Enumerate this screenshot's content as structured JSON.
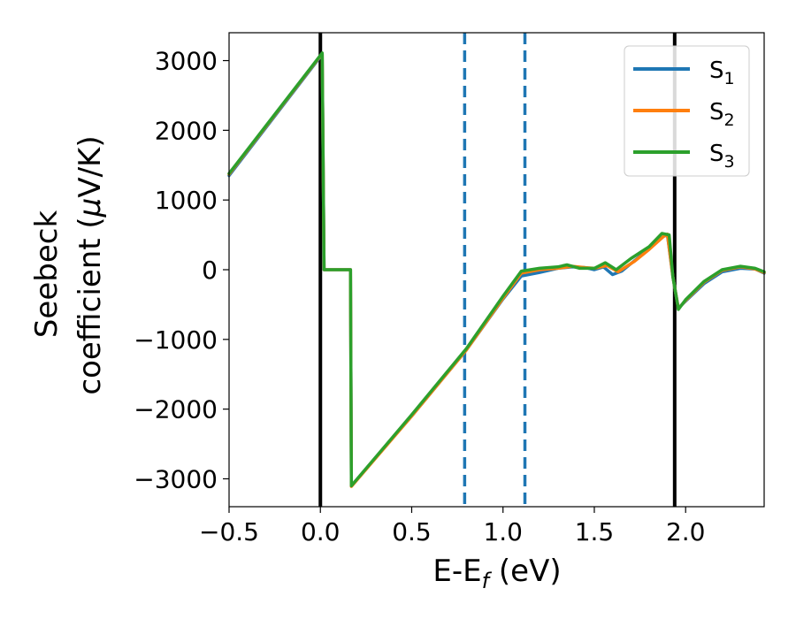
{
  "chart_data": {
    "type": "line",
    "xlabel": {
      "main": "E-E",
      "sub": "f",
      "unit": " (eV)"
    },
    "ylabel": {
      "line1": "Seebeck",
      "line2": "coefficient  (",
      "mu": "μ",
      "unit": "V/K)"
    },
    "xlim": [
      -0.5,
      2.43
    ],
    "ylim": [
      -3400,
      3400
    ],
    "xticks": [
      -0.5,
      0.0,
      0.5,
      1.0,
      1.5,
      2.0
    ],
    "xtick_labels": [
      "−0.5",
      "0.0",
      "0.5",
      "1.0",
      "1.5",
      "2.0"
    ],
    "yticks": [
      3000,
      2000,
      1000,
      0,
      -1000,
      -2000,
      -3000
    ],
    "ytick_labels": [
      "3000",
      "2000",
      "1000",
      "0",
      "−1000",
      "−2000",
      "−3000"
    ],
    "legend_position": "top-right",
    "vertical_lines": [
      {
        "x": 0.0,
        "style": "solid",
        "color": "#000000"
      },
      {
        "x": 1.94,
        "style": "solid",
        "color": "#000000"
      },
      {
        "x": 0.79,
        "style": "dashed",
        "color": "#1f77b4"
      },
      {
        "x": 1.12,
        "style": "dashed",
        "color": "#1f77b4"
      }
    ],
    "series": [
      {
        "name": "S",
        "sub": "1",
        "color": "#1f77b4",
        "points": [
          [
            -0.5,
            1350
          ],
          [
            0.01,
            3090
          ],
          [
            0.02,
            0
          ],
          [
            0.165,
            0
          ],
          [
            0.17,
            -3100
          ],
          [
            0.5,
            -2100
          ],
          [
            0.8,
            -1150
          ],
          [
            1.0,
            -420
          ],
          [
            1.1,
            -90
          ],
          [
            1.2,
            -40
          ],
          [
            1.3,
            20
          ],
          [
            1.38,
            40
          ],
          [
            1.45,
            30
          ],
          [
            1.5,
            0
          ],
          [
            1.55,
            40
          ],
          [
            1.6,
            -70
          ],
          [
            1.65,
            -20
          ],
          [
            1.72,
            130
          ],
          [
            1.8,
            300
          ],
          [
            1.88,
            480
          ],
          [
            1.9,
            500
          ],
          [
            1.93,
            -100
          ],
          [
            1.96,
            -550
          ],
          [
            2.0,
            -450
          ],
          [
            2.1,
            -200
          ],
          [
            2.2,
            -30
          ],
          [
            2.3,
            20
          ],
          [
            2.38,
            10
          ],
          [
            2.43,
            -50
          ]
        ]
      },
      {
        "name": "S",
        "sub": "2",
        "color": "#ff7f0e",
        "points": [
          [
            -0.5,
            1370
          ],
          [
            0.01,
            3100
          ],
          [
            0.02,
            0
          ],
          [
            0.165,
            0
          ],
          [
            0.17,
            -3110
          ],
          [
            0.5,
            -2100
          ],
          [
            0.8,
            -1150
          ],
          [
            1.0,
            -410
          ],
          [
            1.1,
            -50
          ],
          [
            1.2,
            0
          ],
          [
            1.3,
            20
          ],
          [
            1.38,
            50
          ],
          [
            1.45,
            30
          ],
          [
            1.5,
            20
          ],
          [
            1.57,
            60
          ],
          [
            1.63,
            -30
          ],
          [
            1.72,
            120
          ],
          [
            1.8,
            290
          ],
          [
            1.88,
            480
          ],
          [
            1.9,
            510
          ],
          [
            1.93,
            -100
          ],
          [
            1.96,
            -560
          ],
          [
            2.0,
            -440
          ],
          [
            2.1,
            -180
          ],
          [
            2.2,
            -10
          ],
          [
            2.3,
            40
          ],
          [
            2.38,
            10
          ],
          [
            2.43,
            -40
          ]
        ]
      },
      {
        "name": "S",
        "sub": "3",
        "color": "#2ca02c",
        "points": [
          [
            -0.5,
            1380
          ],
          [
            0.01,
            3110
          ],
          [
            0.02,
            0
          ],
          [
            0.165,
            0
          ],
          [
            0.17,
            -3100
          ],
          [
            0.5,
            -2080
          ],
          [
            0.8,
            -1130
          ],
          [
            1.0,
            -380
          ],
          [
            1.1,
            -20
          ],
          [
            1.2,
            20
          ],
          [
            1.3,
            40
          ],
          [
            1.35,
            70
          ],
          [
            1.42,
            20
          ],
          [
            1.5,
            20
          ],
          [
            1.56,
            100
          ],
          [
            1.62,
            0
          ],
          [
            1.7,
            160
          ],
          [
            1.8,
            330
          ],
          [
            1.87,
            520
          ],
          [
            1.91,
            500
          ],
          [
            1.93,
            -100
          ],
          [
            1.96,
            -570
          ],
          [
            2.0,
            -430
          ],
          [
            2.1,
            -170
          ],
          [
            2.2,
            0
          ],
          [
            2.3,
            50
          ],
          [
            2.38,
            20
          ],
          [
            2.43,
            -30
          ]
        ]
      }
    ]
  }
}
